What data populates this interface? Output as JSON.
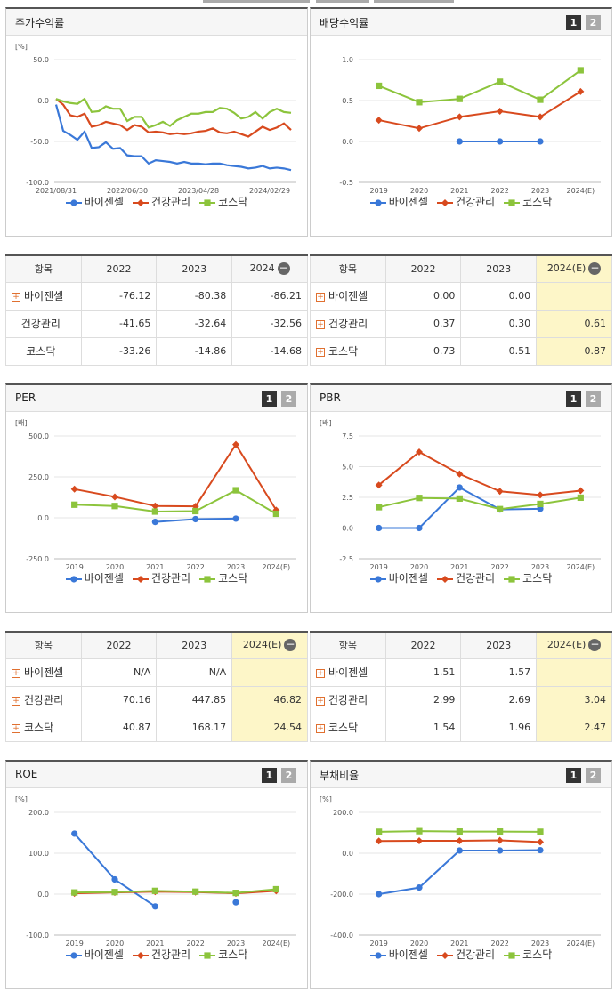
{
  "series_names": [
    "바이젠셀",
    "건강관리",
    "코스닥"
  ],
  "colors": {
    "s0": "#3a78d8",
    "s1": "#d84a1e",
    "s2": "#8cc43c"
  },
  "btn1": "1",
  "btn2": "2",
  "panels": {
    "stock": {
      "title": "주가수익률",
      "unit": "[%]"
    },
    "dividend": {
      "title": "배당수익률",
      "unit": ""
    },
    "per": {
      "title": "PER",
      "unit": "[배]"
    },
    "pbr": {
      "title": "PBR",
      "unit": "[배]"
    },
    "roe": {
      "title": "ROE",
      "unit": "[%]"
    },
    "debt": {
      "title": "부채비율",
      "unit": "[%]"
    }
  },
  "tables": {
    "stock": {
      "headers": [
        "항목",
        "2022",
        "2023",
        "2024"
      ],
      "rows": [
        {
          "label": "바이젠셀",
          "v": [
            "-76.12",
            "-80.38",
            "-86.21"
          ]
        },
        {
          "label": "건강관리",
          "v": [
            "-41.65",
            "-32.64",
            "-32.56"
          ]
        },
        {
          "label": "코스닥",
          "v": [
            "-33.26",
            "-14.86",
            "-14.68"
          ]
        }
      ]
    },
    "dividend": {
      "headers": [
        "항목",
        "2022",
        "2023",
        "2024(E)"
      ],
      "rows": [
        {
          "label": "바이젠셀",
          "v": [
            "0.00",
            "0.00",
            ""
          ]
        },
        {
          "label": "건강관리",
          "v": [
            "0.37",
            "0.30",
            "0.61"
          ]
        },
        {
          "label": "코스닥",
          "v": [
            "0.73",
            "0.51",
            "0.87"
          ]
        }
      ]
    },
    "per": {
      "headers": [
        "항목",
        "2022",
        "2023",
        "2024(E)"
      ],
      "rows": [
        {
          "label": "바이젠셀",
          "v": [
            "N/A",
            "N/A",
            ""
          ]
        },
        {
          "label": "건강관리",
          "v": [
            "70.16",
            "447.85",
            "46.82"
          ]
        },
        {
          "label": "코스닥",
          "v": [
            "40.87",
            "168.17",
            "24.54"
          ]
        }
      ]
    },
    "pbr": {
      "headers": [
        "항목",
        "2022",
        "2023",
        "2024(E)"
      ],
      "rows": [
        {
          "label": "바이젠셀",
          "v": [
            "1.51",
            "1.57",
            ""
          ]
        },
        {
          "label": "건강관리",
          "v": [
            "2.99",
            "2.69",
            "3.04"
          ]
        },
        {
          "label": "코스닥",
          "v": [
            "1.54",
            "1.96",
            "2.47"
          ]
        }
      ]
    }
  },
  "chart_data": [
    {
      "id": "stock",
      "type": "line",
      "title": "주가수익률",
      "ylabel": "[%]",
      "ylim": [
        -100,
        50
      ],
      "yticks": [
        "50.0",
        "0.0",
        "-50.0",
        "-100.0"
      ],
      "ytickvals": [
        50,
        0,
        -50,
        -100
      ],
      "xticks": [
        "2021/08/31",
        "2022/06/30",
        "2023/04/28",
        "2024/02/29"
      ],
      "grid": true,
      "legend": "bottom",
      "series": [
        {
          "name": "바이젠셀",
          "values": [
            -5,
            -37,
            -42,
            -48,
            -38,
            -58,
            -57,
            -51,
            -59,
            -58,
            -67,
            -68,
            -68,
            -77,
            -73,
            -74,
            -75,
            -77,
            -75,
            -77,
            -77,
            -78,
            -77,
            -77,
            -79,
            -80,
            -81,
            -83,
            -82,
            -80,
            -83,
            -82,
            -83,
            -85
          ]
        },
        {
          "name": "건강관리",
          "values": [
            2,
            -5,
            -18,
            -20,
            -16,
            -32,
            -30,
            -26,
            -28,
            -30,
            -36,
            -30,
            -32,
            -39,
            -38,
            -39,
            -41,
            -40,
            -41,
            -40,
            -38,
            -37,
            -34,
            -39,
            -40,
            -38,
            -41,
            -44,
            -38,
            -32,
            -36,
            -33,
            -28,
            -36
          ]
        },
        {
          "name": "코스닥",
          "values": [
            2,
            -1,
            -3,
            -4,
            2,
            -14,
            -13,
            -7,
            -10,
            -10,
            -25,
            -20,
            -20,
            -33,
            -30,
            -26,
            -31,
            -24,
            -20,
            -16,
            -16,
            -14,
            -14,
            -9,
            -10,
            -15,
            -22,
            -20,
            -14,
            -22,
            -14,
            -10,
            -14,
            -15
          ]
        }
      ]
    },
    {
      "id": "dividend",
      "type": "line",
      "title": "배당수익률",
      "ylim": [
        -0.5,
        1.0
      ],
      "yticks": [
        "1.0",
        "0.5",
        "0.0",
        "-0.5"
      ],
      "ytickvals": [
        1.0,
        0.5,
        0.0,
        -0.5
      ],
      "categories": [
        "2019",
        "2020",
        "2021",
        "2022",
        "2023",
        "2024(E)"
      ],
      "grid": true,
      "legend": "bottom",
      "series": [
        {
          "name": "바이젠셀",
          "values": [
            null,
            null,
            0.0,
            0.0,
            0.0,
            null
          ]
        },
        {
          "name": "건강관리",
          "values": [
            0.26,
            0.16,
            0.3,
            0.37,
            0.3,
            0.61
          ]
        },
        {
          "name": "코스닥",
          "values": [
            0.68,
            0.48,
            0.52,
            0.73,
            0.51,
            0.87
          ]
        }
      ]
    },
    {
      "id": "per",
      "type": "line",
      "title": "PER",
      "ylabel": "[배]",
      "ylim": [
        -250,
        500
      ],
      "yticks": [
        "500.0",
        "250.0",
        "0.0",
        "-250.0"
      ],
      "ytickvals": [
        500,
        250,
        0,
        -250
      ],
      "categories": [
        "2019",
        "2020",
        "2021",
        "2022",
        "2023",
        "2024(E)"
      ],
      "grid": true,
      "legend": "bottom",
      "series": [
        {
          "name": "바이젠셀",
          "values": [
            null,
            null,
            -25,
            -8,
            -5,
            null
          ]
        },
        {
          "name": "건강관리",
          "values": [
            175,
            128,
            72,
            70.16,
            447.85,
            46.82
          ]
        },
        {
          "name": "코스닥",
          "values": [
            80,
            72,
            38,
            40.87,
            168.17,
            24.54
          ]
        }
      ]
    },
    {
      "id": "pbr",
      "type": "line",
      "title": "PBR",
      "ylabel": "[배]",
      "ylim": [
        -2.5,
        7.5
      ],
      "yticks": [
        "7.5",
        "5.0",
        "2.5",
        "0.0",
        "-2.5"
      ],
      "ytickvals": [
        7.5,
        5.0,
        2.5,
        0.0,
        -2.5
      ],
      "categories": [
        "2019",
        "2020",
        "2021",
        "2022",
        "2023",
        "2024(E)"
      ],
      "grid": true,
      "legend": "bottom",
      "series": [
        {
          "name": "바이젠셀",
          "values": [
            0.0,
            0.0,
            3.3,
            1.51,
            1.57,
            null
          ]
        },
        {
          "name": "건강관리",
          "values": [
            3.5,
            6.2,
            4.4,
            2.99,
            2.69,
            3.04
          ]
        },
        {
          "name": "코스닥",
          "values": [
            1.7,
            2.45,
            2.4,
            1.54,
            1.96,
            2.47
          ]
        }
      ]
    },
    {
      "id": "roe",
      "type": "line",
      "title": "ROE",
      "ylabel": "[%]",
      "ylim": [
        -100,
        200
      ],
      "yticks": [
        "200.0",
        "100.0",
        "0.0",
        "-100.0"
      ],
      "ytickvals": [
        200,
        100,
        0,
        -100
      ],
      "categories": [
        "2019",
        "2020",
        "2021",
        "2022",
        "2023",
        "2024(E)"
      ],
      "grid": true,
      "legend": "bottom",
      "series": [
        {
          "name": "바이젠셀",
          "values": [
            148,
            36,
            -30,
            null,
            -20,
            null
          ]
        },
        {
          "name": "건강관리",
          "values": [
            2,
            4,
            6,
            5,
            2,
            8
          ]
        },
        {
          "name": "코스닥",
          "values": [
            4,
            5,
            8,
            6,
            3,
            12
          ]
        }
      ]
    },
    {
      "id": "debt",
      "type": "line",
      "title": "부채비율",
      "ylabel": "[%]",
      "ylim": [
        -400,
        200
      ],
      "yticks": [
        "200.0",
        "0.0",
        "-200.0",
        "-400.0"
      ],
      "ytickvals": [
        200,
        0,
        -200,
        -400
      ],
      "categories": [
        "2019",
        "2020",
        "2021",
        "2022",
        "2023",
        "2024(E)"
      ],
      "grid": true,
      "legend": "bottom",
      "series": [
        {
          "name": "바이젠셀",
          "values": [
            -200,
            -168,
            13,
            13,
            15,
            null
          ]
        },
        {
          "name": "건강관리",
          "values": [
            60,
            61,
            61,
            63,
            55,
            null
          ]
        },
        {
          "name": "코스닥",
          "values": [
            105,
            108,
            106,
            106,
            105,
            null
          ]
        }
      ]
    }
  ]
}
